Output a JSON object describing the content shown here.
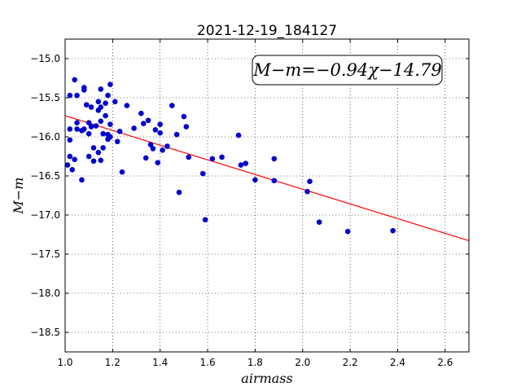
{
  "chart_data": {
    "type": "scatter",
    "title": "2021-12-19_184127",
    "xlabel": "airmass",
    "ylabel": "M−m",
    "xlim": [
      1.0,
      2.7
    ],
    "ylim": [
      -18.75,
      -14.75
    ],
    "y_inverted": true,
    "xticks": [
      "1.0",
      "1.2",
      "1.4",
      "1.6",
      "1.8",
      "2.0",
      "2.2",
      "2.4",
      "2.6"
    ],
    "xtick_values": [
      1.0,
      1.2,
      1.4,
      1.6,
      1.8,
      2.0,
      2.2,
      2.4,
      2.6
    ],
    "yticks": [
      "−15.0",
      "−15.5",
      "−16.0",
      "−16.5",
      "−17.0",
      "−17.5",
      "−18.0",
      "−18.5"
    ],
    "ytick_values": [
      -15.0,
      -15.5,
      -16.0,
      -16.5,
      -17.0,
      -17.5,
      -18.0,
      -18.5
    ],
    "grid": true,
    "annotation": "M−m=−0.94χ−14.79",
    "fit": {
      "slope": -0.94,
      "intercept": -14.79,
      "color": "#ff0000"
    },
    "point_color": "#0000cc",
    "points": [
      [
        1.01,
        -16.36
      ],
      [
        1.02,
        -16.25
      ],
      [
        1.02,
        -15.9
      ],
      [
        1.02,
        -16.04
      ],
      [
        1.02,
        -15.47
      ],
      [
        1.03,
        -16.42
      ],
      [
        1.04,
        -15.27
      ],
      [
        1.04,
        -16.29
      ],
      [
        1.05,
        -15.47
      ],
      [
        1.05,
        -15.82
      ],
      [
        1.05,
        -15.9
      ],
      [
        1.07,
        -16.55
      ],
      [
        1.07,
        -15.92
      ],
      [
        1.08,
        -15.37
      ],
      [
        1.08,
        -15.4
      ],
      [
        1.08,
        -15.9
      ],
      [
        1.09,
        -15.59
      ],
      [
        1.1,
        -15.82
      ],
      [
        1.1,
        -15.96
      ],
      [
        1.1,
        -16.25
      ],
      [
        1.11,
        -15.87
      ],
      [
        1.11,
        -15.62
      ],
      [
        1.12,
        -16.14
      ],
      [
        1.12,
        -16.31
      ],
      [
        1.13,
        -15.86
      ],
      [
        1.14,
        -15.55
      ],
      [
        1.14,
        -15.66
      ],
      [
        1.14,
        -16.2
      ],
      [
        1.15,
        -15.39
      ],
      [
        1.15,
        -15.62
      ],
      [
        1.15,
        -15.8
      ],
      [
        1.15,
        -16.3
      ],
      [
        1.16,
        -15.96
      ],
      [
        1.16,
        -16.14
      ],
      [
        1.17,
        -15.57
      ],
      [
        1.17,
        -15.73
      ],
      [
        1.18,
        -15.97
      ],
      [
        1.18,
        -16.03
      ],
      [
        1.18,
        -15.47
      ],
      [
        1.19,
        -15.33
      ],
      [
        1.19,
        -15.84
      ],
      [
        1.19,
        -16.0
      ],
      [
        1.21,
        -15.55
      ],
      [
        1.22,
        -16.06
      ],
      [
        1.23,
        -15.93
      ],
      [
        1.24,
        -16.45
      ],
      [
        1.26,
        -15.6
      ],
      [
        1.29,
        -15.89
      ],
      [
        1.32,
        -15.7
      ],
      [
        1.33,
        -15.83
      ],
      [
        1.34,
        -16.27
      ],
      [
        1.35,
        -15.79
      ],
      [
        1.36,
        -16.1
      ],
      [
        1.37,
        -16.15
      ],
      [
        1.38,
        -15.91
      ],
      [
        1.39,
        -16.33
      ],
      [
        1.4,
        -15.84
      ],
      [
        1.4,
        -15.95
      ],
      [
        1.41,
        -16.17
      ],
      [
        1.43,
        -16.12
      ],
      [
        1.45,
        -15.6
      ],
      [
        1.47,
        -15.97
      ],
      [
        1.48,
        -16.71
      ],
      [
        1.5,
        -15.74
      ],
      [
        1.51,
        -15.87
      ],
      [
        1.52,
        -16.26
      ],
      [
        1.58,
        -16.47
      ],
      [
        1.59,
        -17.06
      ],
      [
        1.62,
        -16.28
      ],
      [
        1.66,
        -16.26
      ],
      [
        1.73,
        -15.98
      ],
      [
        1.74,
        -16.36
      ],
      [
        1.76,
        -16.34
      ],
      [
        1.8,
        -16.55
      ],
      [
        1.88,
        -16.28
      ],
      [
        1.88,
        -16.56
      ],
      [
        2.02,
        -16.7
      ],
      [
        2.03,
        -16.57
      ],
      [
        2.07,
        -17.09
      ],
      [
        2.19,
        -17.21
      ],
      [
        2.38,
        -17.2
      ]
    ]
  }
}
